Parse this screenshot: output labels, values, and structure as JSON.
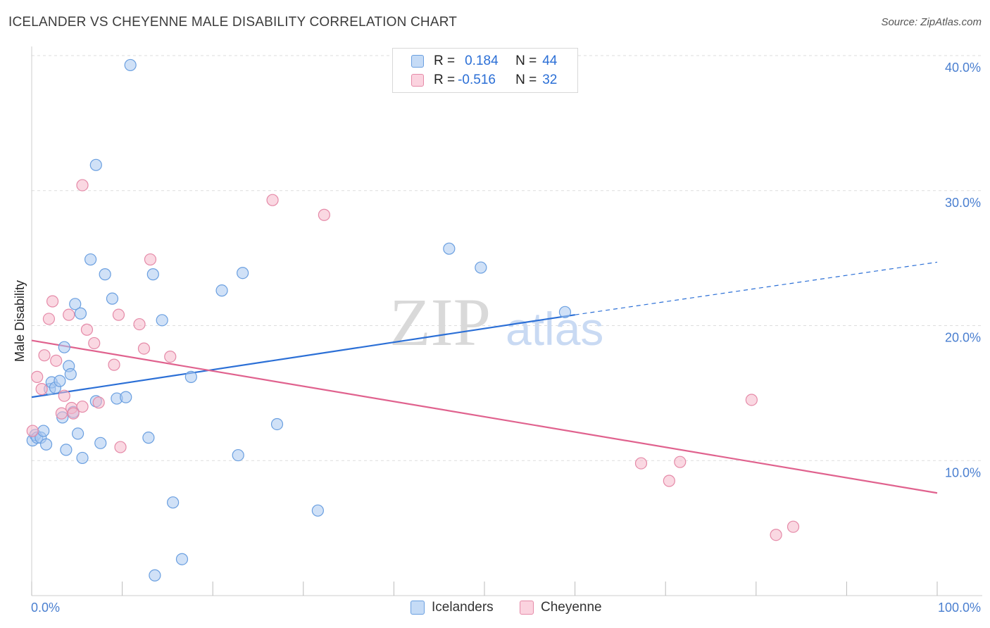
{
  "header": {
    "title": "ICELANDER VS CHEYENNE MALE DISABILITY CORRELATION CHART",
    "source": "Source: ZipAtlas.com"
  },
  "watermark": {
    "zip": "ZIP",
    "atlas": "atlas"
  },
  "legend": {
    "rows": [
      {
        "r_label": "R = ",
        "r_value": "0.184",
        "n_label": "N = ",
        "n_value": "44",
        "color": "#a9c9f0"
      },
      {
        "r_label": "R = ",
        "r_value": "-0.516",
        "n_label": "N = ",
        "n_value": "32",
        "color": "#f6b8cb"
      }
    ]
  },
  "bottom_legend": [
    {
      "label": "Icelanders",
      "color": "#a9c9f0"
    },
    {
      "label": "Cheyenne",
      "color": "#f6b8cb"
    }
  ],
  "colors": {
    "blue_point": "#a9c9f0",
    "blue_stroke": "#6a9fe0",
    "blue_line": "#2b6fd6",
    "pink_point": "#f6b8cb",
    "pink_stroke": "#e58aa8",
    "pink_line": "#e0628e",
    "grid": "#dddddd",
    "axis_text": "#4a7fd0"
  },
  "chart_data": {
    "type": "scatter",
    "title": "ICELANDER VS CHEYENNE MALE DISABILITY CORRELATION CHART",
    "xlabel": "",
    "ylabel": "Male Disability",
    "xlim": [
      0,
      100
    ],
    "ylim": [
      0,
      40
    ],
    "x_tick_labels": [
      "0.0%",
      "100.0%"
    ],
    "y_ticks": [
      10,
      20,
      30,
      40
    ],
    "y_tick_labels": [
      "10.0%",
      "20.0%",
      "30.0%",
      "40.0%"
    ],
    "grid": true,
    "legend_position": "top-center",
    "series": [
      {
        "name": "Icelanders",
        "r": 0.184,
        "n": 44,
        "trend": {
          "x0": 0,
          "y0": 14.7,
          "x1": 60,
          "y1": 20.8,
          "dashed_to_x": 100,
          "dashed_to_y": 24.7
        },
        "points": [
          [
            0.1,
            11.5
          ],
          [
            0.4,
            11.9
          ],
          [
            0.6,
            11.7
          ],
          [
            1.0,
            11.7
          ],
          [
            1.3,
            12.2
          ],
          [
            1.6,
            11.2
          ],
          [
            2.0,
            15.3
          ],
          [
            2.2,
            15.8
          ],
          [
            2.6,
            15.4
          ],
          [
            3.1,
            15.9
          ],
          [
            3.4,
            13.2
          ],
          [
            3.6,
            18.4
          ],
          [
            3.8,
            10.8
          ],
          [
            4.1,
            17.0
          ],
          [
            4.3,
            16.4
          ],
          [
            4.6,
            13.6
          ],
          [
            4.8,
            21.6
          ],
          [
            5.1,
            12.0
          ],
          [
            5.6,
            10.2
          ],
          [
            5.4,
            20.9
          ],
          [
            6.5,
            24.9
          ],
          [
            7.1,
            31.9
          ],
          [
            7.1,
            14.4
          ],
          [
            7.6,
            11.3
          ],
          [
            8.1,
            23.8
          ],
          [
            8.9,
            22.0
          ],
          [
            9.4,
            14.6
          ],
          [
            10.4,
            14.7
          ],
          [
            10.9,
            39.3
          ],
          [
            12.9,
            11.7
          ],
          [
            13.6,
            1.5
          ],
          [
            13.4,
            23.8
          ],
          [
            14.4,
            20.4
          ],
          [
            15.6,
            6.9
          ],
          [
            16.6,
            2.7
          ],
          [
            17.6,
            16.2
          ],
          [
            21.0,
            22.6
          ],
          [
            22.8,
            10.4
          ],
          [
            23.3,
            23.9
          ],
          [
            27.1,
            12.7
          ],
          [
            31.6,
            6.3
          ],
          [
            46.1,
            25.7
          ],
          [
            49.6,
            24.3
          ],
          [
            58.9,
            21.0
          ]
        ]
      },
      {
        "name": "Cheyenne",
        "r": -0.516,
        "n": 32,
        "trend": {
          "x0": 0,
          "y0": 18.9,
          "x1": 100,
          "y1": 7.6
        },
        "points": [
          [
            0.1,
            12.2
          ],
          [
            0.6,
            16.2
          ],
          [
            1.1,
            15.3
          ],
          [
            1.4,
            17.8
          ],
          [
            1.9,
            20.5
          ],
          [
            2.3,
            21.8
          ],
          [
            2.7,
            17.4
          ],
          [
            3.3,
            13.5
          ],
          [
            3.6,
            14.8
          ],
          [
            4.1,
            20.8
          ],
          [
            4.4,
            13.9
          ],
          [
            4.6,
            13.5
          ],
          [
            5.6,
            14.0
          ],
          [
            5.6,
            30.4
          ],
          [
            6.1,
            19.7
          ],
          [
            6.9,
            18.7
          ],
          [
            7.4,
            14.3
          ],
          [
            9.1,
            17.1
          ],
          [
            9.6,
            20.8
          ],
          [
            9.8,
            11.0
          ],
          [
            11.9,
            20.1
          ],
          [
            12.4,
            18.3
          ],
          [
            13.1,
            24.9
          ],
          [
            15.3,
            17.7
          ],
          [
            26.6,
            29.3
          ],
          [
            32.3,
            28.2
          ],
          [
            67.3,
            9.8
          ],
          [
            70.4,
            8.5
          ],
          [
            71.6,
            9.9
          ],
          [
            79.5,
            14.5
          ],
          [
            82.2,
            4.5
          ],
          [
            84.1,
            5.1
          ]
        ]
      }
    ]
  }
}
